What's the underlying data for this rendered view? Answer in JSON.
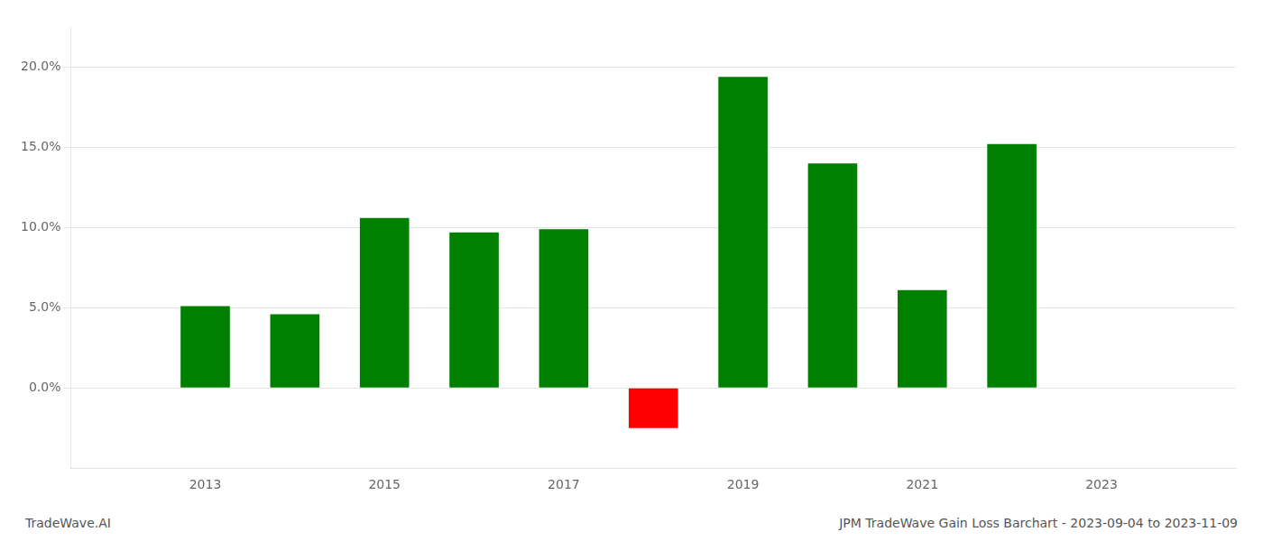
{
  "chart_data": {
    "type": "bar",
    "x": [
      2013,
      2014,
      2015,
      2016,
      2017,
      2018,
      2019,
      2020,
      2021,
      2022
    ],
    "values": [
      0.051,
      0.046,
      0.106,
      0.097,
      0.099,
      -0.025,
      0.194,
      0.14,
      0.061,
      0.152
    ],
    "colors": [
      "#008000",
      "#008000",
      "#008000",
      "#008000",
      "#008000",
      "#ff0000",
      "#008000",
      "#008000",
      "#008000",
      "#008000"
    ],
    "xlim": [
      2011.5,
      2024.5
    ],
    "xticks": [
      2013,
      2015,
      2017,
      2019,
      2021,
      2023
    ],
    "ylim": [
      -0.05,
      0.225
    ],
    "yticks": [
      {
        "value": 0.0,
        "label": "0.0%"
      },
      {
        "value": 0.05,
        "label": "5.0%"
      },
      {
        "value": 0.1,
        "label": "10.0%"
      },
      {
        "value": 0.15,
        "label": "15.0%"
      },
      {
        "value": 0.2,
        "label": "20.0%"
      }
    ],
    "grid": true,
    "annotations": [
      "TradeWave.AI",
      "JPM TradeWave Gain Loss Barchart - 2023-09-04 to 2023-11-09"
    ]
  }
}
